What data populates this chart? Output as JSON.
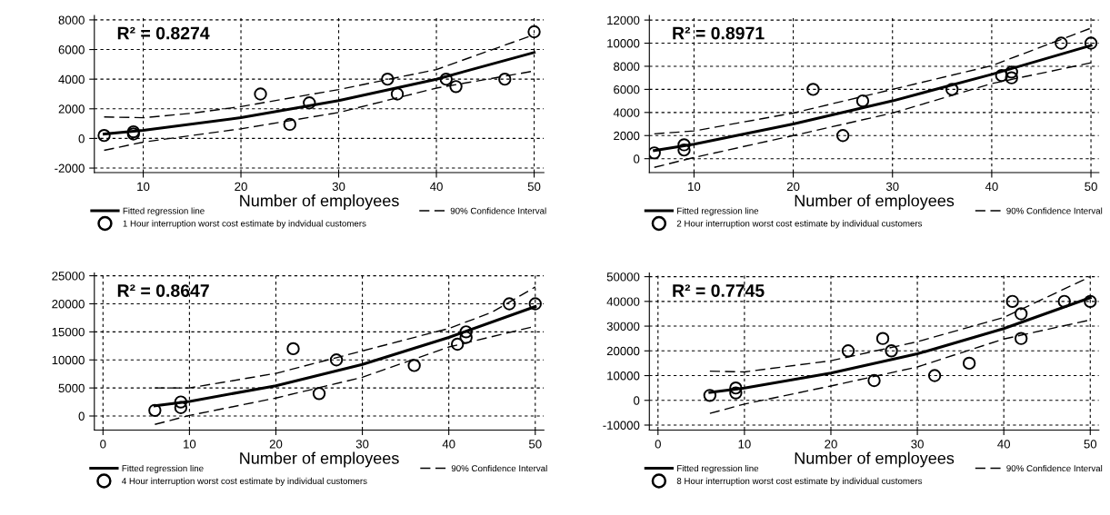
{
  "chart_data": [
    {
      "type": "scatter",
      "xlabel": "Number of employees",
      "annotations": [
        "R² = 0.8274"
      ],
      "xlim": [
        5,
        51
      ],
      "xticks": [
        10,
        20,
        30,
        40,
        50
      ],
      "ylim": [
        -2300,
        8300
      ],
      "yticks": [
        -2000,
        0,
        2000,
        4000,
        6000,
        8000
      ],
      "grid": true,
      "legend": "bottom",
      "series": [
        {
          "name": "Fitted regression line",
          "type": "line",
          "color": "#000000",
          "line_style": "solid",
          "x": [
            6,
            10,
            20,
            30,
            40,
            50
          ],
          "values": [
            300,
            550,
            1400,
            2550,
            4000,
            5800
          ]
        },
        {
          "name": "1 Hour interruption worst cost estimate by indvidual customers",
          "type": "scatter",
          "marker": "circle",
          "color": "#000000",
          "x": [
            6,
            9,
            9,
            22,
            25,
            27,
            35,
            36,
            41,
            42,
            47,
            50
          ],
          "values": [
            200,
            300,
            450,
            3000,
            950,
            2400,
            4000,
            3000,
            4000,
            3500,
            4000,
            7200
          ]
        },
        {
          "name": "90% Confidence Interval",
          "type": "line",
          "color": "#000000",
          "line_style": "dashed",
          "x": [
            6,
            10,
            15,
            20,
            30,
            40,
            50
          ],
          "values": [
            1450,
            1400,
            1700,
            2150,
            3300,
            4650,
            7000
          ]
        },
        {
          "type": "line",
          "color": "#000000",
          "line_style": "dashed",
          "x": [
            6,
            10,
            20,
            30,
            40,
            50
          ],
          "values": [
            -800,
            -250,
            650,
            1750,
            3400,
            4550
          ]
        }
      ]
    },
    {
      "type": "scatter",
      "xlabel": "Number of employees",
      "annotations": [
        "R² = 0.8971"
      ],
      "xlim": [
        5.5,
        50.8
      ],
      "xticks": [
        10,
        20,
        30,
        40,
        50
      ],
      "ylim": [
        -1200,
        12400
      ],
      "yticks": [
        0,
        2000,
        4000,
        6000,
        8000,
        10000,
        12000
      ],
      "grid": true,
      "legend": "bottom",
      "series": [
        {
          "name": "Fitted regression line",
          "type": "line",
          "color": "#000000",
          "line_style": "solid",
          "x": [
            6,
            10,
            20,
            30,
            40,
            50
          ],
          "values": [
            700,
            1250,
            3000,
            5000,
            7300,
            9800
          ]
        },
        {
          "name": "2 Hour interruption worst cost estimate by individual customers",
          "type": "scatter",
          "marker": "circle",
          "color": "#000000",
          "x": [
            6,
            9,
            9,
            22,
            25,
            27,
            36,
            41,
            42,
            42,
            47,
            50
          ],
          "values": [
            500,
            750,
            1200,
            6000,
            2000,
            5000,
            6000,
            7200,
            7000,
            7500,
            10000,
            10000
          ]
        },
        {
          "name": "90% Confidence Interval",
          "type": "line",
          "color": "#000000",
          "line_style": "dashed",
          "x": [
            6,
            10,
            20,
            30,
            40,
            50
          ],
          "values": [
            2150,
            2400,
            3950,
            6000,
            8050,
            11300
          ]
        },
        {
          "type": "line",
          "color": "#000000",
          "line_style": "dashed",
          "x": [
            6,
            10,
            20,
            30,
            40,
            50
          ],
          "values": [
            -750,
            100,
            2000,
            3950,
            6500,
            8300
          ]
        }
      ]
    },
    {
      "type": "scatter",
      "xlabel": "Number of employees",
      "annotations": [
        "R² = 0.8647"
      ],
      "xlim": [
        -1,
        51
      ],
      "xticks": [
        0,
        10,
        20,
        30,
        40,
        50
      ],
      "ylim": [
        -2500,
        25500
      ],
      "yticks": [
        0,
        5000,
        10000,
        15000,
        20000,
        25000
      ],
      "grid": true,
      "legend": "bottom",
      "series": [
        {
          "name": "Fitted regression line",
          "type": "line",
          "color": "#000000",
          "line_style": "solid",
          "x": [
            6,
            10,
            20,
            30,
            40,
            50
          ],
          "values": [
            1800,
            2600,
            5400,
            9200,
            14000,
            19500
          ]
        },
        {
          "name": "4 Hour interruption worst cost estimate by individual customers",
          "type": "scatter",
          "marker": "circle",
          "color": "#000000",
          "x": [
            6,
            9,
            9,
            22,
            25,
            27,
            36,
            41,
            42,
            42,
            47,
            50
          ],
          "values": [
            1000,
            1500,
            2500,
            12000,
            4000,
            10000,
            9000,
            12800,
            14000,
            15000,
            20000,
            20000
          ]
        },
        {
          "name": "90% Confidence Interval",
          "type": "line",
          "color": "#000000",
          "line_style": "dashed",
          "x": [
            6,
            10,
            20,
            30,
            40,
            45,
            50
          ],
          "values": [
            5000,
            5000,
            7600,
            11600,
            15600,
            18500,
            23000
          ]
        },
        {
          "type": "line",
          "color": "#000000",
          "line_style": "dashed",
          "x": [
            6,
            10,
            20,
            30,
            40,
            50
          ],
          "values": [
            -1500,
            100,
            3200,
            6900,
            12300,
            16000
          ]
        }
      ]
    },
    {
      "type": "scatter",
      "xlabel": "Number of employees",
      "annotations": [
        "R² = 0.7745"
      ],
      "xlim": [
        -1,
        51
      ],
      "xticks": [
        0,
        10,
        20,
        30,
        40,
        50
      ],
      "ylim": [
        -12000,
        51500
      ],
      "yticks": [
        -10000,
        0,
        10000,
        20000,
        30000,
        40000,
        50000
      ],
      "grid": true,
      "legend": "bottom",
      "series": [
        {
          "name": "Fitted regression line",
          "type": "line",
          "color": "#000000",
          "line_style": "solid",
          "x": [
            6,
            10,
            20,
            30,
            40,
            50
          ],
          "values": [
            3200,
            5000,
            11000,
            18800,
            29000,
            41500
          ]
        },
        {
          "name": "8 Hour interruption worst cost estimate by individual customers",
          "type": "scatter",
          "marker": "circle",
          "color": "#000000",
          "x": [
            6,
            9,
            9,
            22,
            25,
            26,
            27,
            32,
            36,
            41,
            42,
            42,
            47,
            50
          ],
          "values": [
            2000,
            3000,
            5000,
            20000,
            8000,
            25000,
            20000,
            10000,
            15000,
            40000,
            25000,
            35000,
            40000,
            40000
          ]
        },
        {
          "name": "90% Confidence Interval",
          "type": "line",
          "color": "#000000",
          "line_style": "dashed",
          "x": [
            6,
            10,
            20,
            30,
            40,
            50
          ],
          "values": [
            11800,
            11500,
            16000,
            23700,
            33500,
            50000
          ]
        },
        {
          "type": "line",
          "color": "#000000",
          "line_style": "dashed",
          "x": [
            6,
            10,
            20,
            30,
            40,
            50
          ],
          "values": [
            -5300,
            -1500,
            5800,
            13500,
            24800,
            32500
          ]
        }
      ]
    }
  ]
}
